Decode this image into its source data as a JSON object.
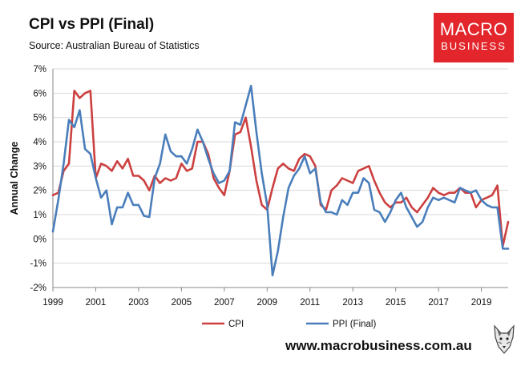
{
  "header": {
    "title": "CPI vs PPI (Final)",
    "source": "Source: Australian Bureau of Statistics"
  },
  "logo": {
    "line1": "MACRO",
    "line2": "BUSINESS"
  },
  "footer": {
    "website": "www.macrobusiness.com.au"
  },
  "colors": {
    "cpi": "#cc4040",
    "ppi": "#4a7ebb",
    "logo_bg": "#e3262b"
  },
  "chart_data": {
    "type": "line",
    "title": "CPI vs PPI (Final)",
    "xlabel": "",
    "ylabel": "Annual Change",
    "xlim": [
      1999,
      2020.25
    ],
    "ylim": [
      -2,
      7
    ],
    "y_ticks": [
      -2,
      -1,
      0,
      1,
      2,
      3,
      4,
      5,
      6,
      7
    ],
    "y_tick_labels": [
      "-2%",
      "-1%",
      "0%",
      "1%",
      "2%",
      "3%",
      "4%",
      "5%",
      "6%",
      "7%"
    ],
    "x_ticks": [
      1999,
      2001,
      2003,
      2005,
      2007,
      2009,
      2011,
      2013,
      2015,
      2017,
      2019
    ],
    "x_tick_labels": [
      "1999",
      "2001",
      "2003",
      "2005",
      "2007",
      "2009",
      "2011",
      "2013",
      "2015",
      "2017",
      "2019"
    ],
    "grid": true,
    "legend": "bottom",
    "x_start": 1999,
    "x_step": 0.25,
    "series": [
      {
        "name": "CPI",
        "values": [
          1.8,
          1.9,
          2.8,
          3.1,
          6.1,
          5.8,
          6.0,
          6.1,
          2.5,
          3.1,
          3.0,
          2.8,
          3.2,
          2.9,
          3.3,
          2.6,
          2.6,
          2.4,
          2.0,
          2.6,
          2.3,
          2.5,
          2.4,
          2.5,
          3.1,
          2.8,
          2.9,
          4.0,
          4.0,
          3.5,
          2.5,
          2.1,
          1.8,
          2.8,
          4.3,
          4.4,
          5.0,
          3.8,
          2.4,
          1.4,
          1.2,
          2.1,
          2.9,
          3.1,
          2.9,
          2.8,
          3.3,
          3.5,
          3.4,
          3.0,
          1.4,
          1.2,
          2.0,
          2.2,
          2.5,
          2.4,
          2.3,
          2.8,
          2.9,
          3.0,
          2.4,
          1.9,
          1.5,
          1.3,
          1.5,
          1.5,
          1.7,
          1.3,
          1.1,
          1.4,
          1.7,
          2.1,
          1.9,
          1.8,
          1.9,
          1.9,
          2.1,
          1.9,
          1.9,
          1.3,
          1.6,
          1.7,
          1.8,
          2.2,
          -0.3,
          0.7
        ]
      },
      {
        "name": "PPI (Final)",
        "values": [
          0.3,
          1.6,
          3.1,
          4.9,
          4.6,
          5.3,
          3.7,
          3.5,
          2.5,
          1.7,
          2.0,
          0.6,
          1.3,
          1.3,
          1.9,
          1.4,
          1.4,
          0.95,
          0.9,
          2.5,
          3.1,
          4.3,
          3.6,
          3.4,
          3.4,
          3.1,
          3.7,
          4.5,
          4.0,
          3.3,
          2.7,
          2.3,
          2.4,
          2.8,
          4.8,
          4.7,
          5.5,
          6.3,
          4.4,
          2.7,
          1.4,
          -1.5,
          -0.5,
          0.9,
          2.1,
          2.6,
          2.9,
          3.4,
          2.7,
          2.9,
          1.5,
          1.1,
          1.1,
          1.0,
          1.6,
          1.4,
          1.9,
          1.9,
          2.5,
          2.3,
          1.2,
          1.1,
          0.7,
          1.1,
          1.6,
          1.9,
          1.3,
          0.9,
          0.5,
          0.7,
          1.3,
          1.7,
          1.6,
          1.7,
          1.6,
          1.5,
          2.1,
          2.0,
          1.9,
          2.0,
          1.6,
          1.4,
          1.3,
          1.3,
          -0.4,
          -0.4
        ]
      }
    ]
  }
}
